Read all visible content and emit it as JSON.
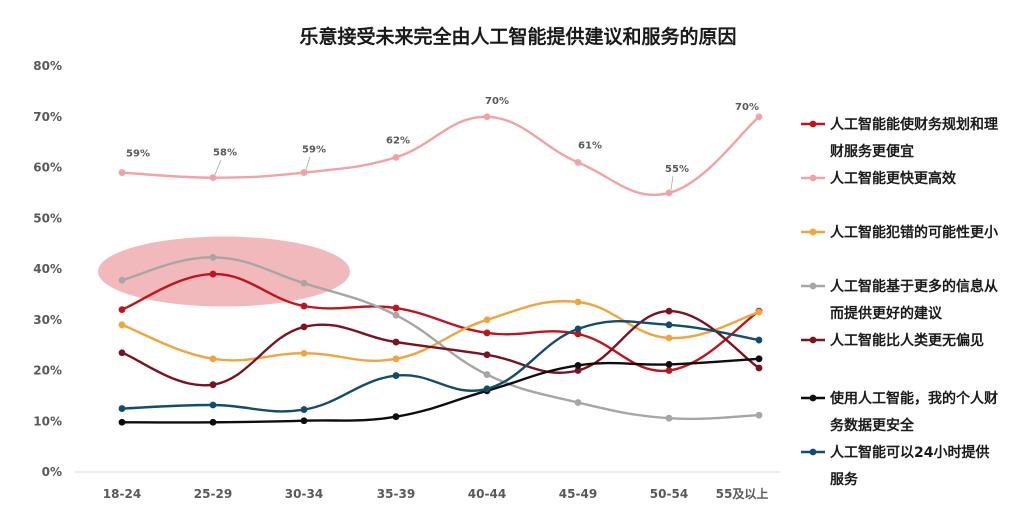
{
  "chart_data": {
    "type": "line",
    "title": "乐意接受未来完全由人工智能提供建议和服务的原因",
    "xlabel": "",
    "ylabel": "",
    "categories": [
      "18-24",
      "25-29",
      "30-34",
      "35-39",
      "40-44",
      "45-49",
      "50-54",
      "55及以上"
    ],
    "ylim": [
      0,
      80
    ],
    "yticks": [
      "0%",
      "10%",
      "20%",
      "30%",
      "40%",
      "50%",
      "60%",
      "70%",
      "80%"
    ],
    "legend_position": "right",
    "grid": false,
    "highlight": "ellipse around 18-24 to 30-34 values near 38%-42%",
    "series": [
      {
        "name": "人工智能能使财务规划和理财服务更便宜",
        "name_lines": [
          "人工智能能使财务规划和理",
          "财服务更便宜"
        ],
        "color": "#c0141c",
        "values": [
          32,
          39,
          32.7,
          32.3,
          27.4,
          27.2,
          20,
          31.7
        ]
      },
      {
        "name": "人工智能更快更高效",
        "name_lines": [
          "人工智能更快更高效"
        ],
        "color": "#f2a2a7",
        "values": [
          59,
          58,
          59,
          62,
          70,
          61,
          55,
          70
        ],
        "labels": [
          "59%",
          "58%",
          "59%",
          "62%",
          "70%",
          "61%",
          "55%",
          "70%"
        ]
      },
      {
        "name": "人工智能犯错的可能性更小",
        "name_lines": [
          "人工智能犯错的可能性更小"
        ],
        "color": "#f0a43c",
        "values": [
          29,
          22.3,
          23.4,
          22.3,
          30,
          33.5,
          26.4,
          31.5
        ]
      },
      {
        "name": "人工智能基于更多的信息从而提供更好的建议",
        "name_lines": [
          "人工智能基于更多的信息从",
          "而提供更好的建议"
        ],
        "color": "#a6a6a6",
        "values": [
          37.8,
          42.3,
          37.2,
          30.9,
          19.2,
          13.7,
          10.6,
          11.2
        ]
      },
      {
        "name": "人工智能比人类更无偏见",
        "name_lines": [
          "人工智能比人类更无偏见"
        ],
        "color": "#7b1220",
        "values": [
          23.5,
          17.2,
          28.6,
          25.6,
          23.1,
          20,
          31.7,
          20.5
        ]
      },
      {
        "name": "使用人工智能，我的个人财务数据更安全",
        "name_lines": [
          "使用人工智能，我的个人财",
          "务数据更安全"
        ],
        "color": "#0d0d0d",
        "values": [
          9.8,
          9.8,
          10.1,
          10.9,
          16,
          21,
          21.2,
          22.3
        ]
      },
      {
        "name": "人工智能可以24小时提供服务",
        "name_lines": [
          "人工智能可以24小时提供",
          "服务"
        ],
        "color": "#124e6b",
        "values": [
          12.5,
          13.2,
          12.3,
          19,
          16.4,
          28.2,
          29,
          26
        ]
      }
    ]
  }
}
